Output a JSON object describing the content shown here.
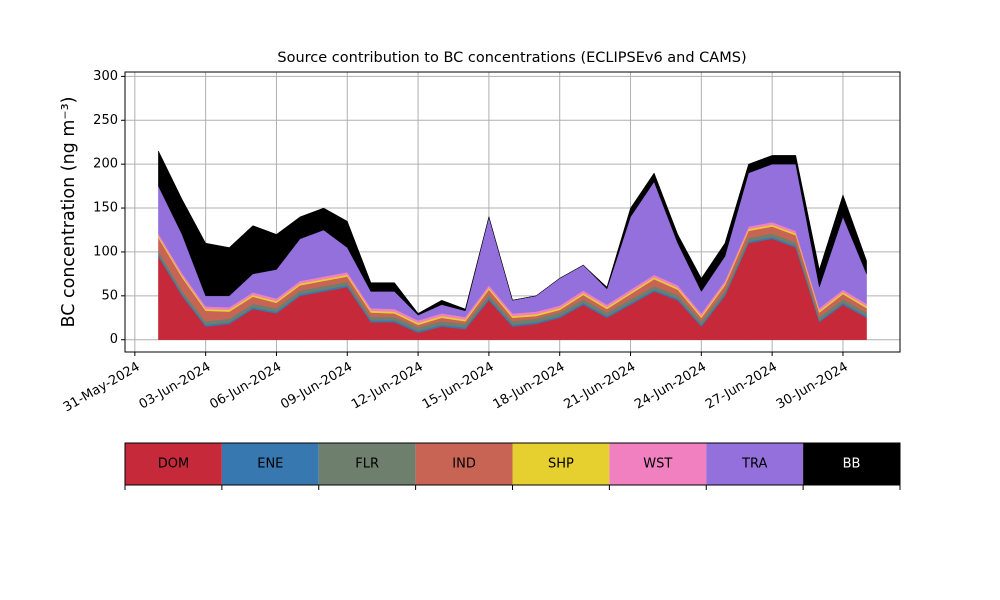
{
  "chart_data": {
    "type": "stacked_area",
    "title": "Source contribution to BC concentrations (ECLIPSEv6 and CAMS)",
    "y_label": "BC concentration (ng m⁻³)",
    "x": [
      "2024-06-01",
      "2024-06-02",
      "2024-06-03",
      "2024-06-04",
      "2024-06-05",
      "2024-06-06",
      "2024-06-07",
      "2024-06-08",
      "2024-06-09",
      "2024-06-10",
      "2024-06-11",
      "2024-06-12",
      "2024-06-13",
      "2024-06-14",
      "2024-06-15",
      "2024-06-16",
      "2024-06-17",
      "2024-06-18",
      "2024-06-19",
      "2024-06-20",
      "2024-06-21",
      "2024-06-22",
      "2024-06-23",
      "2024-06-24",
      "2024-06-25",
      "2024-06-26",
      "2024-06-27",
      "2024-06-28",
      "2024-06-29",
      "2024-06-30",
      "2024-07-01"
    ],
    "series": [
      {
        "name": "DOM",
        "color": "#c62a3a",
        "values": [
          95,
          50,
          15,
          18,
          35,
          30,
          50,
          55,
          60,
          20,
          20,
          8,
          15,
          12,
          45,
          15,
          18,
          25,
          40,
          25,
          40,
          55,
          45,
          15,
          50,
          110,
          115,
          105,
          20,
          40,
          25
        ]
      },
      {
        "name": "ENE",
        "color": "#3878b0",
        "values": [
          2,
          2,
          2,
          2,
          2,
          2,
          2,
          2,
          2,
          2,
          2,
          2,
          2,
          2,
          2,
          2,
          2,
          2,
          2,
          2,
          2,
          2,
          2,
          2,
          2,
          2,
          2,
          2,
          2,
          2,
          2
        ]
      },
      {
        "name": "FLR",
        "color": "#6e7f6e",
        "values": [
          4,
          4,
          4,
          4,
          4,
          4,
          4,
          4,
          4,
          4,
          4,
          4,
          4,
          4,
          4,
          4,
          4,
          4,
          4,
          4,
          4,
          4,
          4,
          4,
          4,
          4,
          4,
          4,
          4,
          4,
          4
        ]
      },
      {
        "name": "IND",
        "color": "#c86454",
        "values": [
          15,
          15,
          12,
          8,
          8,
          6,
          6,
          6,
          6,
          5,
          4,
          3,
          4,
          3,
          6,
          4,
          3,
          3,
          5,
          4,
          6,
          8,
          6,
          4,
          6,
          8,
          8,
          8,
          5,
          6,
          5
        ]
      },
      {
        "name": "SHP",
        "color": "#e6d030",
        "values": [
          2,
          2,
          2,
          2,
          2,
          2,
          2,
          2,
          2,
          2,
          2,
          2,
          2,
          2,
          2,
          2,
          2,
          2,
          2,
          2,
          2,
          2,
          2,
          2,
          2,
          2,
          2,
          2,
          2,
          2,
          2
        ]
      },
      {
        "name": "WST",
        "color": "#f080bf",
        "values": [
          3,
          3,
          3,
          3,
          3,
          3,
          3,
          3,
          3,
          3,
          3,
          3,
          3,
          3,
          3,
          3,
          3,
          3,
          3,
          3,
          3,
          3,
          3,
          3,
          3,
          3,
          3,
          3,
          3,
          3,
          3
        ]
      },
      {
        "name": "TRA",
        "color": "#9370db",
        "values": [
          54,
          44,
          12,
          13,
          21,
          33,
          48,
          53,
          28,
          19,
          20,
          6,
          10,
          7,
          78,
          15,
          18,
          31,
          29,
          18,
          83,
          106,
          48,
          25,
          28,
          61,
          66,
          76,
          24,
          83,
          34
        ]
      },
      {
        "name": "BB",
        "color": "#000000",
        "values": [
          40,
          40,
          60,
          55,
          55,
          40,
          25,
          25,
          30,
          10,
          10,
          2,
          5,
          2,
          0,
          0,
          0,
          0,
          0,
          2,
          10,
          10,
          10,
          15,
          15,
          10,
          10,
          10,
          20,
          25,
          15
        ]
      }
    ],
    "xlim": [
      "2024-05-30T14:00",
      "2024-07-02T10:00"
    ],
    "xticks": [
      {
        "value": "2024-05-31",
        "label": "31-May-2024"
      },
      {
        "value": "2024-06-03",
        "label": "03-Jun-2024"
      },
      {
        "value": "2024-06-06",
        "label": "06-Jun-2024"
      },
      {
        "value": "2024-06-09",
        "label": "09-Jun-2024"
      },
      {
        "value": "2024-06-12",
        "label": "12-Jun-2024"
      },
      {
        "value": "2024-06-15",
        "label": "15-Jun-2024"
      },
      {
        "value": "2024-06-18",
        "label": "18-Jun-2024"
      },
      {
        "value": "2024-06-21",
        "label": "21-Jun-2024"
      },
      {
        "value": "2024-06-24",
        "label": "24-Jun-2024"
      },
      {
        "value": "2024-06-27",
        "label": "27-Jun-2024"
      },
      {
        "value": "2024-06-30",
        "label": "30-Jun-2024"
      }
    ],
    "ylim": [
      -14,
      305
    ],
    "yticks": [
      0,
      50,
      100,
      150,
      200,
      250,
      300
    ],
    "grid": true
  }
}
